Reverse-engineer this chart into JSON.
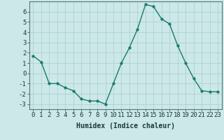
{
  "x": [
    0,
    1,
    2,
    3,
    4,
    5,
    6,
    7,
    8,
    9,
    10,
    11,
    12,
    13,
    14,
    15,
    16,
    17,
    18,
    19,
    20,
    21,
    22,
    23
  ],
  "y": [
    1.7,
    1.1,
    -1.0,
    -1.0,
    -1.4,
    -1.7,
    -2.5,
    -2.7,
    -2.7,
    -3.0,
    -1.0,
    1.0,
    2.5,
    4.3,
    6.7,
    6.5,
    5.3,
    4.8,
    2.7,
    1.0,
    -0.5,
    -1.7,
    -1.8,
    -1.8
  ],
  "line_color": "#1a7a6e",
  "marker_color": "#1a7a6e",
  "bg_color": "#cce8e8",
  "grid_color": "#aacccc",
  "xlabel": "Humidex (Indice chaleur)",
  "xlabel_fontsize": 7,
  "tick_fontsize": 6.5,
  "xlim": [
    -0.5,
    23.5
  ],
  "ylim": [
    -3.5,
    7.0
  ],
  "yticks": [
    -3,
    -2,
    -1,
    0,
    1,
    2,
    3,
    4,
    5,
    6
  ],
  "xticks": [
    0,
    1,
    2,
    3,
    4,
    5,
    6,
    7,
    8,
    9,
    10,
    11,
    12,
    13,
    14,
    15,
    16,
    17,
    18,
    19,
    20,
    21,
    22,
    23
  ],
  "line_width": 1.0,
  "marker_size": 2.5
}
